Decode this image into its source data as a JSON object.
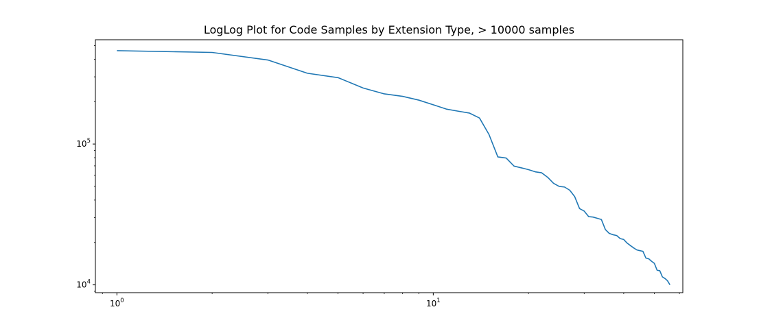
{
  "chart_data": {
    "type": "line",
    "title": "LogLog Plot for Code Samples by Extension Type, > 10000 samples",
    "xlabel": "",
    "ylabel": "",
    "xscale": "log",
    "yscale": "log",
    "xlim": [
      0.855,
      61.5
    ],
    "ylim": [
      8800,
      550000
    ],
    "grid": false,
    "legend": "none",
    "x_ticks": [
      {
        "value": 1,
        "base": "10",
        "exp": "0"
      },
      {
        "value": 10,
        "base": "10",
        "exp": "1"
      }
    ],
    "y_ticks": [
      {
        "value": 10000,
        "base": "10",
        "exp": "4"
      },
      {
        "value": 100000,
        "base": "10",
        "exp": "5"
      }
    ],
    "series": [
      {
        "color": "#1f77b4",
        "x": [
          1,
          2,
          3,
          4,
          5,
          6,
          7,
          8,
          9,
          10,
          11,
          12,
          13,
          14,
          15,
          16,
          17,
          18,
          19,
          20,
          21,
          22,
          23,
          24,
          25,
          26,
          27,
          28,
          29,
          30,
          31,
          32,
          33,
          34,
          35,
          36,
          37,
          38,
          39,
          40,
          41,
          42,
          43,
          44,
          45,
          46,
          47,
          48,
          49,
          50,
          51,
          52,
          53,
          54,
          55,
          56
        ],
        "y": [
          460000,
          447000,
          395000,
          318000,
          296000,
          250000,
          227000,
          218000,
          205000,
          190000,
          177000,
          171000,
          166000,
          153000,
          117000,
          81000,
          79500,
          69700,
          67700,
          65800,
          63500,
          62500,
          58000,
          52600,
          50000,
          49500,
          47000,
          42300,
          34800,
          33400,
          30500,
          30300,
          29700,
          29100,
          24700,
          23200,
          22700,
          22400,
          21300,
          21000,
          19800,
          19000,
          18300,
          17700,
          17500,
          17300,
          15500,
          15300,
          14700,
          14200,
          12700,
          12600,
          11400,
          11100,
          10700,
          10000
        ]
      }
    ]
  }
}
